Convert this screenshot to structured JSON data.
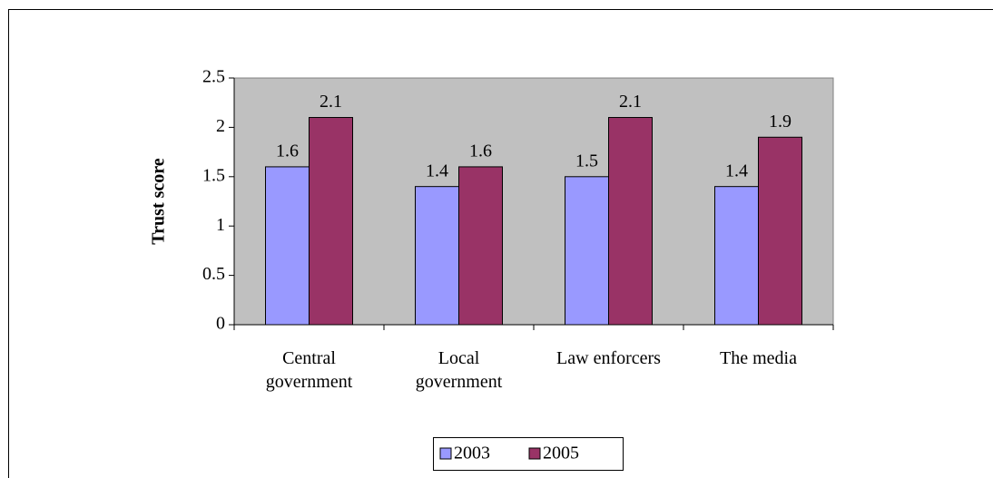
{
  "chart_data": {
    "type": "bar",
    "y_label": "Trust score",
    "categories": [
      "Central government",
      "Local government",
      "Law enforcers",
      "The media"
    ],
    "series": [
      {
        "name": "2003",
        "color": "#9999ff",
        "values": [
          1.6,
          1.4,
          1.5,
          1.4
        ]
      },
      {
        "name": "2005",
        "color": "#993366",
        "values": [
          2.1,
          1.6,
          2.1,
          1.9
        ]
      }
    ],
    "ylim": [
      0,
      2.5
    ],
    "yticks": [
      0,
      0.5,
      1,
      1.5,
      2,
      2.5
    ],
    "plot_background": "#c0c0c0",
    "legend": "bottom"
  }
}
